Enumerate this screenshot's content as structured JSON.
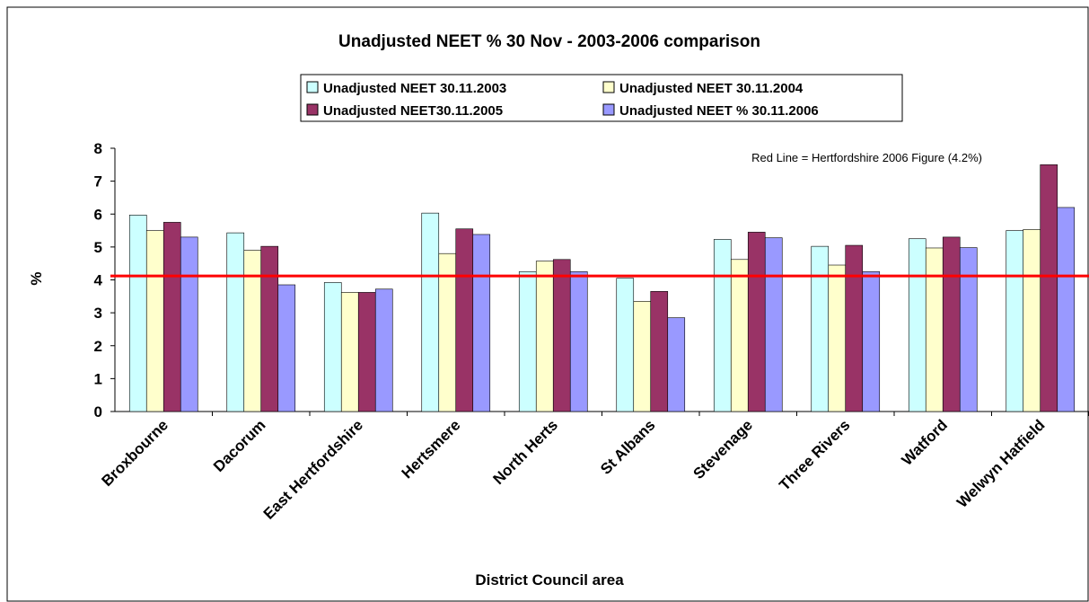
{
  "chart_data": {
    "type": "bar",
    "title": "Unadjusted NEET % 30 Nov - 2003-2006 comparison",
    "y_label": "%",
    "x_label": "District Council area",
    "annotation": "Red Line = Hertfordshire 2006 Figure (4.2%)",
    "reference_line": {
      "value": 4.12,
      "color": "#ff0000"
    },
    "categories": [
      "Broxbourne",
      "Dacorum",
      "East Hertfordshire",
      "Hertsmere",
      "North Herts",
      "St Albans",
      "Stevenage",
      "Three Rivers",
      "Watford",
      "Welwyn Hatfield"
    ],
    "series": [
      {
        "name": "Unadjusted NEET 30.11.2003",
        "color": "#ccffff",
        "values": [
          5.97,
          5.43,
          3.92,
          6.03,
          4.25,
          4.05,
          5.23,
          5.02,
          5.25,
          5.5
        ]
      },
      {
        "name": "Unadjusted NEET 30.11.2004",
        "color": "#ffffcc",
        "values": [
          5.5,
          4.9,
          3.62,
          4.8,
          4.57,
          3.35,
          4.62,
          4.45,
          4.97,
          5.53
        ]
      },
      {
        "name": "Unadjusted NEET30.11.2005",
        "color": "#993366",
        "values": [
          5.75,
          5.02,
          3.62,
          5.55,
          4.62,
          3.65,
          5.45,
          5.05,
          5.3,
          7.5
        ]
      },
      {
        "name": "Unadjusted  NEET % 30.11.2006",
        "color": "#9999ff",
        "values": [
          5.3,
          3.85,
          3.72,
          5.38,
          4.25,
          2.85,
          5.28,
          4.25,
          4.98,
          6.2
        ]
      }
    ],
    "ylim": [
      0,
      8
    ],
    "yticks": [
      0,
      1,
      2,
      3,
      4,
      5,
      6,
      7,
      8
    ],
    "grid": false
  }
}
